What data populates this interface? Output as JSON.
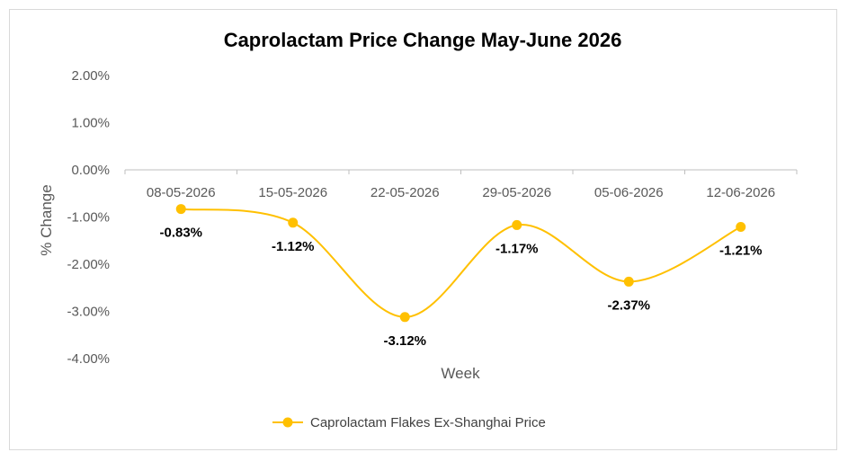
{
  "chart_data": {
    "type": "line",
    "title": "Caprolactam Price Change May-June 2026",
    "xlabel": "Week",
    "ylabel": "% Change",
    "categories": [
      "08-05-2026",
      "15-05-2026",
      "22-05-2026",
      "29-05-2026",
      "05-06-2026",
      "12-06-2026"
    ],
    "series": [
      {
        "name": "Caprolactam Flakes Ex-Shanghai Price",
        "values": [
          -0.83,
          -1.12,
          -3.12,
          -1.17,
          -2.37,
          -1.21
        ],
        "labels": [
          "-0.83%",
          "-1.12%",
          "-3.12%",
          "-1.17%",
          "-2.37%",
          "-1.21%"
        ],
        "color": "#FFC000"
      }
    ],
    "ylim": [
      -4,
      2
    ],
    "yticks": [
      "2.00%",
      "1.00%",
      "0.00%",
      "-1.00%",
      "-2.00%",
      "-3.00%",
      "-4.00%"
    ],
    "grid": false,
    "smooth": true,
    "legend_position": "bottom"
  }
}
